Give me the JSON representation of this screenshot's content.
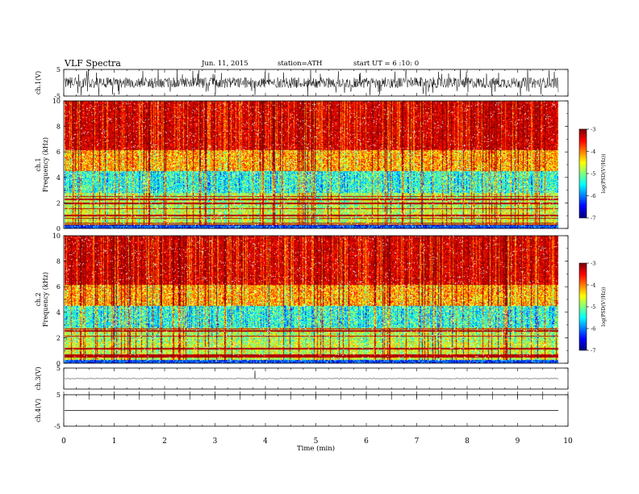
{
  "header": {
    "title": "VLF Spectra",
    "date": "Jun. 11, 2015",
    "station": "station=ATH",
    "start": "start  UT =  6 :10: 0"
  },
  "colorbar": {
    "label": "log(PSD(V²/Hz))",
    "ticks": [
      "-3",
      "-4",
      "-5",
      "-6",
      "-7"
    ]
  },
  "chart_data": [
    {
      "type": "line",
      "panel": "ch.1 waveform",
      "ylabel": "ch.1(V)",
      "ylim": [
        -5,
        5
      ],
      "y_ticks": [
        "5",
        "-5"
      ],
      "description_of_signal": "noisy waveform fluctuating roughly between -2 and +2 V with frequent spikes to ±5 V",
      "xlim": [
        0,
        10
      ],
      "approx_amplitude": 2
    },
    {
      "type": "heatmap",
      "panel": "ch.1 spectrogram",
      "ylabel": "ch.1  Frequency  (kHz)",
      "ylim": [
        0,
        10
      ],
      "y_ticks": [
        "0",
        "2",
        "4",
        "6",
        "8",
        "10"
      ],
      "xlim": [
        0,
        9.8
      ],
      "zlim": [
        -7,
        -3
      ]
    },
    {
      "type": "heatmap",
      "panel": "ch.2 spectrogram",
      "ylabel": "ch.2  Frequency  (kHz)",
      "ylim": [
        0,
        10
      ],
      "y_ticks": [
        "0",
        "2",
        "4",
        "6",
        "8",
        "10"
      ],
      "xlim": [
        0,
        9.8
      ],
      "zlim": [
        -7,
        -3
      ]
    },
    {
      "type": "line",
      "panel": "ch.3 waveform",
      "ylabel": "ch.3(V)",
      "ylim": [
        -5,
        5
      ],
      "y_ticks": [
        "5"
      ],
      "xlim": [
        0,
        10
      ],
      "approx_level": 0
    },
    {
      "type": "line",
      "panel": "ch.4 waveform",
      "ylabel": "ch.4(V)",
      "ylim": [
        -5,
        5
      ],
      "y_ticks": [
        "5",
        "-5"
      ],
      "xlim": [
        0,
        10
      ],
      "approx_level": 0
    }
  ],
  "xaxis": {
    "label": "Time  (min)",
    "ticks": [
      "0",
      "1",
      "2",
      "3",
      "4",
      "5",
      "6",
      "7",
      "8",
      "9",
      "10"
    ],
    "range": [
      0,
      10
    ]
  }
}
